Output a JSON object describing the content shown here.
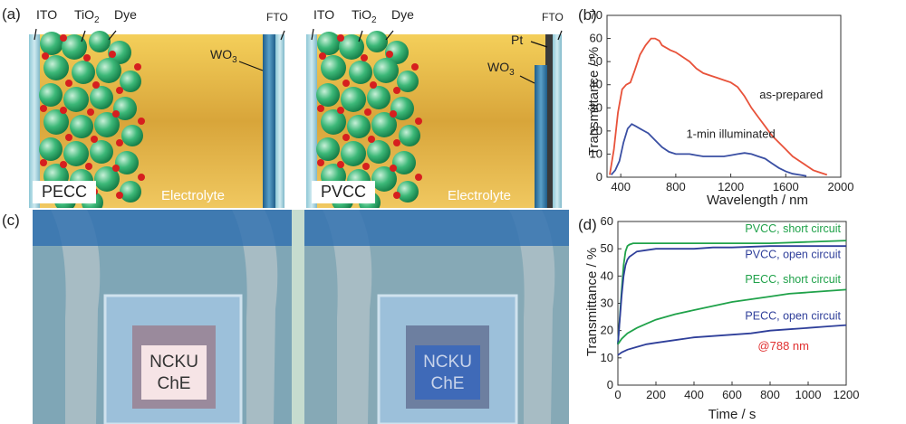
{
  "panel_a": {
    "letter": "(a)",
    "left_cell": {
      "tag": "PECC",
      "electrolyte": "Electrolyte",
      "ito": "ITO",
      "tio2_base": "TiO",
      "tio2_sub": "2",
      "dye": "Dye",
      "fto": "FTO",
      "wo3_base": "WO",
      "wo3_sub": "3"
    },
    "right_cell": {
      "tag": "PVCC",
      "electrolyte": "Electrolyte",
      "ito": "ITO",
      "tio2_base": "TiO",
      "tio2_sub": "2",
      "dye": "Dye",
      "fto": "FTO",
      "pt": "Pt",
      "wo3_base": "WO",
      "wo3_sub": "3"
    }
  },
  "panel_c": {
    "letter": "(c)",
    "left_photo_text": [
      "NCKU",
      "ChE"
    ],
    "right_photo_text": [
      "NCKU",
      "ChE"
    ]
  },
  "chart_data": [
    {
      "panel": "(b)",
      "type": "line",
      "xlabel": "Wavelength / nm",
      "ylabel": "Transmittance / %",
      "xlim": [
        300,
        2000
      ],
      "ylim": [
        0,
        70
      ],
      "xticks": [
        400,
        800,
        1200,
        1600,
        2000
      ],
      "yticks": [
        0,
        10,
        20,
        30,
        40,
        50,
        60,
        70
      ],
      "series": [
        {
          "name": "as-prepared",
          "color": "#e8523a",
          "x": [
            320,
            350,
            380,
            410,
            440,
            470,
            500,
            540,
            580,
            620,
            650,
            680,
            700,
            730,
            760,
            800,
            850,
            900,
            950,
            1000,
            1050,
            1100,
            1150,
            1200,
            1250,
            1300,
            1350,
            1400,
            1450,
            1500,
            1550,
            1600,
            1650,
            1700,
            1750,
            1800,
            1850,
            1900
          ],
          "y": [
            1,
            12,
            28,
            38,
            40,
            41,
            46,
            53,
            57,
            60,
            60,
            59,
            57,
            56,
            55,
            54,
            52,
            50,
            47,
            45,
            44,
            43,
            42,
            41,
            39,
            35,
            30,
            26,
            22,
            18,
            15,
            12,
            9,
            7,
            5,
            3,
            2,
            1
          ]
        },
        {
          "name": "1-min illuminated",
          "color": "#3a4fa3",
          "x": [
            330,
            360,
            390,
            420,
            450,
            480,
            510,
            540,
            570,
            600,
            650,
            700,
            750,
            800,
            850,
            900,
            950,
            1000,
            1050,
            1100,
            1150,
            1200,
            1250,
            1300,
            1350,
            1400,
            1450,
            1500,
            1550,
            1600,
            1650,
            1700,
            1750
          ],
          "y": [
            1,
            3,
            7,
            15,
            21,
            23,
            22,
            21,
            20,
            19,
            16,
            13,
            11,
            10,
            10,
            10,
            9.5,
            9,
            9,
            9,
            9,
            9.5,
            10,
            10.5,
            10,
            9,
            8,
            6,
            4,
            2.5,
            1.5,
            1,
            0.5
          ]
        }
      ],
      "annotations": [
        {
          "text": "as-prepared",
          "at": [
            1640,
            34
          ]
        },
        {
          "text": "1-min illuminated",
          "at": [
            1200,
            17
          ]
        }
      ]
    },
    {
      "panel": "(d)",
      "type": "line",
      "xlabel": "Time / s",
      "ylabel": "Transmittance / %",
      "xlim": [
        0,
        1200
      ],
      "ylim": [
        0,
        60
      ],
      "xticks": [
        0,
        200,
        400,
        600,
        800,
        1000,
        1200
      ],
      "yticks": [
        0,
        10,
        20,
        30,
        40,
        50,
        60
      ],
      "series": [
        {
          "name": "PVCC, short circuit",
          "color": "#20a24a",
          "x": [
            0,
            10,
            20,
            30,
            40,
            50,
            60,
            80,
            100,
            150,
            200,
            300,
            400,
            500,
            600,
            800,
            1000,
            1200
          ],
          "y": [
            15,
            25,
            35,
            44,
            49,
            51,
            51.5,
            52,
            52,
            52,
            52,
            52,
            52,
            52,
            52,
            52,
            52.5,
            53
          ]
        },
        {
          "name": "PVCC, open circuit",
          "color": "#2f3f9a",
          "x": [
            0,
            10,
            20,
            30,
            40,
            50,
            60,
            80,
            100,
            150,
            200,
            300,
            400,
            500,
            600,
            800,
            1000,
            1200
          ],
          "y": [
            15,
            24,
            33,
            40,
            44,
            46,
            47,
            48,
            49,
            49.5,
            50,
            50,
            50,
            50.5,
            50.5,
            51,
            51,
            51
          ]
        },
        {
          "name": "PECC, short circuit",
          "color": "#20a24a",
          "x": [
            0,
            20,
            50,
            100,
            150,
            200,
            300,
            400,
            500,
            600,
            700,
            800,
            900,
            1000,
            1100,
            1200
          ],
          "y": [
            15,
            17,
            19,
            21,
            22.5,
            24,
            26,
            27.5,
            29,
            30.5,
            31.5,
            32.5,
            33.5,
            34,
            34.5,
            35
          ]
        },
        {
          "name": "PECC, open circuit",
          "color": "#2f3f9a",
          "x": [
            0,
            20,
            50,
            100,
            150,
            200,
            300,
            400,
            500,
            600,
            700,
            800,
            900,
            1000,
            1100,
            1200
          ],
          "y": [
            11,
            12,
            13,
            14,
            15,
            15.5,
            16.5,
            17.5,
            18,
            18.5,
            19,
            20,
            20.5,
            21,
            21.5,
            22
          ]
        }
      ],
      "annotations": [
        {
          "text": "@788 nm",
          "color": "#e03030",
          "at": [
            870,
            13
          ]
        }
      ]
    }
  ]
}
